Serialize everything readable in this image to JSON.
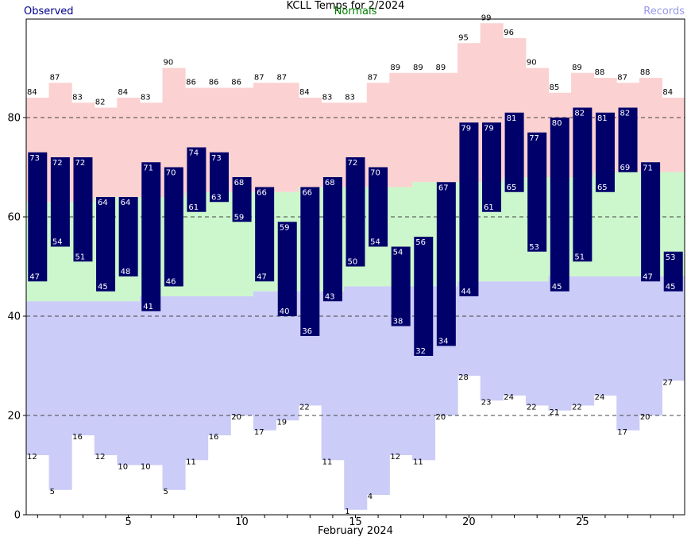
{
  "legend": {
    "observed": "Observed",
    "normals": "Normals",
    "records": "Records"
  },
  "colors": {
    "observed_bar": "#00006b",
    "observed_label": "#ffffff",
    "records_high_area": "#fcd1d1",
    "normals_area": "#ccf7cc",
    "records_low_area": "#ccccf8",
    "record_label": "#000000",
    "legend_observed": "#00008b",
    "legend_normals": "#008000",
    "legend_records": "#9898ee",
    "gridline": "#444444",
    "axis": "#000000"
  },
  "chart_data": {
    "type": "bar",
    "title": "KCLL Temps for 2/2024",
    "xlabel": "February 2024",
    "ylabel": "",
    "ylim": [
      0,
      100
    ],
    "ytick_labels": [
      0,
      20,
      40,
      60,
      80
    ],
    "xtick_labels": [
      5,
      10,
      15,
      20,
      25
    ],
    "grid": "horizontal dashed lines at 20, 40, 60, 80",
    "legend_position": "top (Observed left, Normals center, Records right)",
    "x": [
      1,
      2,
      3,
      4,
      5,
      6,
      7,
      8,
      9,
      10,
      11,
      12,
      13,
      14,
      15,
      16,
      17,
      18,
      19,
      20,
      21,
      22,
      23,
      24,
      25,
      26,
      27,
      28,
      29
    ],
    "series": [
      {
        "name": "record_high",
        "values": [
          84,
          87,
          83,
          82,
          84,
          83,
          90,
          86,
          86,
          86,
          87,
          87,
          84,
          83,
          83,
          87,
          89,
          89,
          89,
          95,
          99,
          96,
          90,
          85,
          89,
          88,
          87,
          88,
          84
        ]
      },
      {
        "name": "normal_high",
        "values": [
          63,
          63,
          63,
          64,
          64,
          64,
          64,
          65,
          65,
          65,
          65,
          65,
          66,
          66,
          66,
          66,
          66,
          67,
          67,
          67,
          67,
          68,
          68,
          68,
          68,
          69,
          69,
          69,
          69
        ]
      },
      {
        "name": "normal_low",
        "values": [
          43,
          43,
          43,
          43,
          43,
          44,
          44,
          44,
          44,
          44,
          45,
          45,
          45,
          45,
          46,
          46,
          46,
          46,
          46,
          47,
          47,
          47,
          47,
          48,
          48,
          48,
          48,
          48,
          48
        ]
      },
      {
        "name": "record_low",
        "values": [
          12,
          5,
          16,
          12,
          10,
          10,
          5,
          11,
          16,
          20,
          17,
          19,
          22,
          11,
          1,
          4,
          12,
          11,
          20,
          28,
          23,
          24,
          22,
          21,
          22,
          24,
          17,
          20,
          27
        ]
      },
      {
        "name": "observed_high",
        "values": [
          73,
          72,
          72,
          64,
          64,
          71,
          70,
          74,
          73,
          68,
          66,
          59,
          66,
          68,
          72,
          70,
          54,
          56,
          67,
          79,
          79,
          81,
          77,
          80,
          82,
          81,
          82,
          71,
          53
        ]
      },
      {
        "name": "observed_low",
        "values": [
          47,
          54,
          51,
          45,
          48,
          41,
          46,
          61,
          63,
          59,
          47,
          40,
          36,
          43,
          50,
          54,
          38,
          32,
          34,
          44,
          61,
          65,
          53,
          45,
          51,
          65,
          69,
          47,
          45
        ]
      }
    ]
  }
}
